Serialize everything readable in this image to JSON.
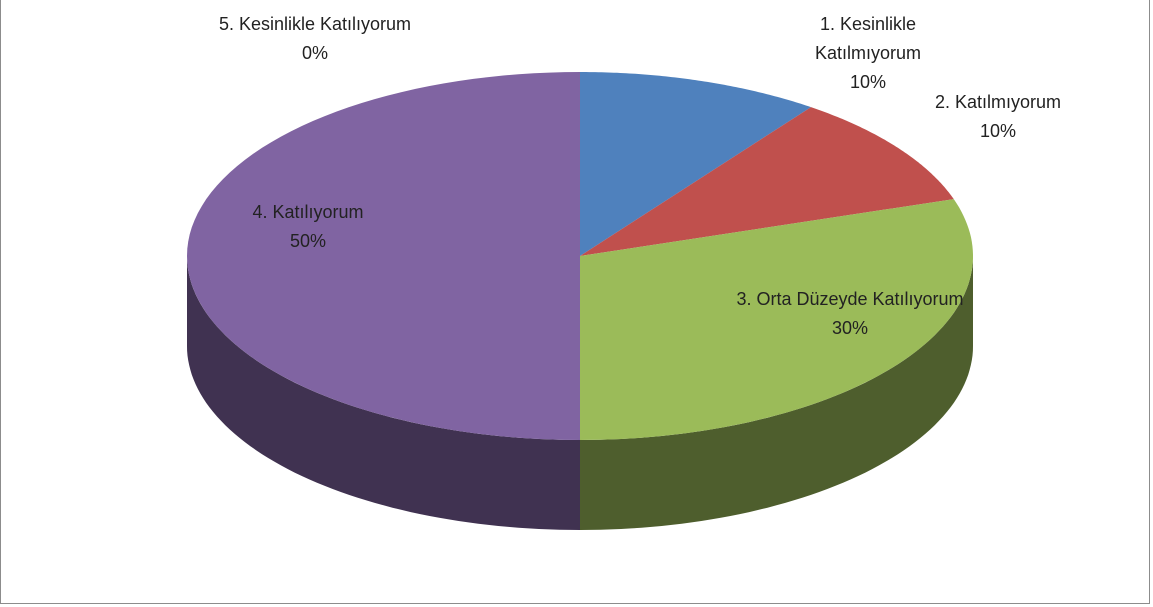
{
  "chart_data": {
    "type": "pie",
    "categories": [
      "1. Kesinlikle Katılmıyorum",
      "2. Katılmıyorum",
      "3. Orta Düzeyde Katılıyorum",
      "4. Katılıyorum",
      "5. Kesinlikle Katılıyorum"
    ],
    "values": [
      10,
      10,
      30,
      50,
      0
    ],
    "value_labels": [
      "10%",
      "10%",
      "30%",
      "50%",
      "0%"
    ],
    "colors": [
      "#4f81bd",
      "#c0504d",
      "#9bbb59",
      "#8064a2",
      "#4bacc6"
    ]
  }
}
